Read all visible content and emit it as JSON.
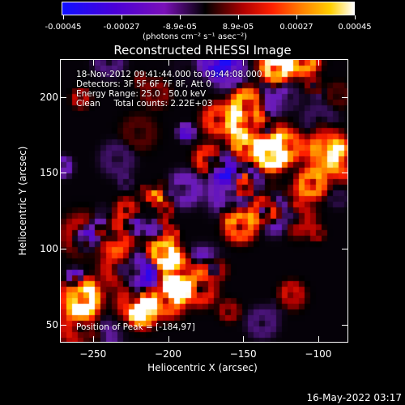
{
  "colorbar": {
    "ticks": [
      "-0.00045",
      "-0.00027",
      "-8.9e-05",
      "8.9e-05",
      "0.00027",
      "0.00045"
    ],
    "unit_label": "(photons cm⁻² s⁻¹ asec⁻²)"
  },
  "title": "Reconstructed RHESSI Image",
  "info": {
    "time_range": "18-Nov-2012 09:41:44.000 to 09:44:08.000",
    "detectors": "Detectors: 3F 5F 6F 7F 8F, Att 0",
    "energy": "Energy Range: 25.0 - 50.0 keV",
    "algorithm": "Clean     Total counts: 2.22E+03"
  },
  "peak": "Position of Peak = [-184,97]",
  "xlabel": "Heliocentric X (arcsec)",
  "ylabel": "Heliocentric Y (arcsec)",
  "stamp": "16-May-2022 03:17",
  "chart_data": {
    "type": "heatmap",
    "title": "Reconstructed RHESSI Image",
    "xlabel": "Heliocentric X (arcsec)",
    "ylabel": "Heliocentric Y (arcsec)",
    "xlim": [
      -272,
      -80
    ],
    "ylim": [
      38,
      225
    ],
    "xticks": [
      -250,
      -200,
      -150,
      -100
    ],
    "yticks": [
      50,
      100,
      150,
      200
    ],
    "colorbar_range": [
      -0.00045,
      0.00045
    ],
    "peak_position": [
      -184,
      97
    ]
  }
}
